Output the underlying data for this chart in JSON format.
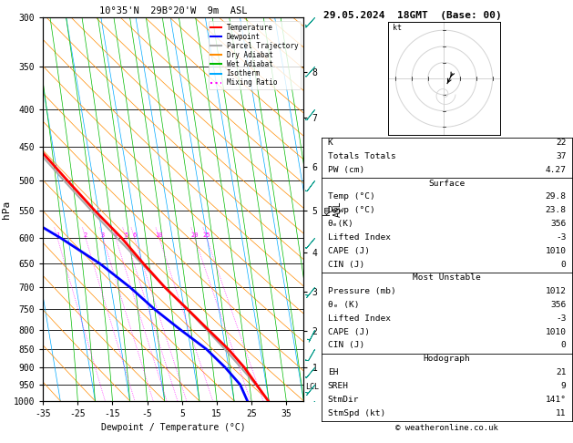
{
  "title_left": "10°35'N  29B°20'W  9m  ASL",
  "title_right": "29.05.2024  18GMT  (Base: 00)",
  "xlabel": "Dewpoint / Temperature (°C)",
  "ylabel_left": "hPa",
  "pressure_levels": [
    300,
    350,
    400,
    450,
    500,
    550,
    600,
    650,
    700,
    750,
    800,
    850,
    900,
    950,
    1000
  ],
  "temp_xlim": [
    -35,
    40
  ],
  "temp_color": "#ff0000",
  "dewp_color": "#0000ff",
  "parcel_color": "#aaaaaa",
  "dry_adiabat_color": "#ff8c00",
  "wet_adiabat_color": "#00bb00",
  "isotherm_color": "#00aaff",
  "mixing_ratio_color": "#ff00ff",
  "bg_color": "#ffffff",
  "pressure_ticks": [
    300,
    350,
    400,
    450,
    500,
    550,
    600,
    650,
    700,
    750,
    800,
    850,
    900,
    950,
    1000
  ],
  "km_ticks": [
    1,
    2,
    3,
    4,
    5,
    6,
    7,
    8
  ],
  "km_pressures": [
    899,
    802,
    710,
    627,
    550,
    479,
    411,
    356
  ],
  "lcl_label": "LCL",
  "legend_entries": [
    "Temperature",
    "Dewpoint",
    "Parcel Trajectory",
    "Dry Adiabat",
    "Wet Adiabat",
    "Isotherm",
    "Mixing Ratio"
  ],
  "legend_colors": [
    "#ff0000",
    "#0000ff",
    "#aaaaaa",
    "#ff8c00",
    "#00bb00",
    "#00aaff",
    "#ff00ff"
  ],
  "legend_styles": [
    "-",
    "-",
    "-",
    "-",
    "-",
    "-",
    ":"
  ],
  "K": 22,
  "Totals_Totals": 37,
  "PW": 4.27,
  "Surf_Temp": 29.8,
  "Surf_Dewp": 23.8,
  "Surf_ThetaE": 356,
  "Surf_LI": -3,
  "Surf_CAPE": 1010,
  "Surf_CIN": 0,
  "MU_Pressure": 1012,
  "MU_ThetaE": 356,
  "MU_LI": -3,
  "MU_CAPE": 1010,
  "MU_CIN": 0,
  "EH": 21,
  "SREH": 9,
  "StmDir": 141,
  "StmSpd": 11,
  "website": "© weatheronline.co.uk",
  "sounding_pressures": [
    1000,
    950,
    900,
    850,
    800,
    750,
    700,
    650,
    600,
    550,
    500,
    450,
    400,
    350,
    300
  ],
  "sounding_temp": [
    29.8,
    27.2,
    24.5,
    20.8,
    16.0,
    11.0,
    5.5,
    0.5,
    -4.5,
    -11.0,
    -17.5,
    -24.5,
    -32.0,
    -40.5,
    -50.0
  ],
  "sounding_dewp": [
    23.8,
    22.5,
    19.0,
    14.5,
    8.0,
    1.5,
    -4.5,
    -12.0,
    -22.0,
    -34.0,
    -44.0,
    -53.0,
    -60.0,
    -67.0,
    -72.0
  ],
  "parcel_temp": [
    29.8,
    27.0,
    23.5,
    19.8,
    15.5,
    10.8,
    5.5,
    0.0,
    -5.8,
    -12.0,
    -18.5,
    -25.5,
    -33.0,
    -41.5,
    -50.0
  ],
  "skew_factor": 35.0
}
